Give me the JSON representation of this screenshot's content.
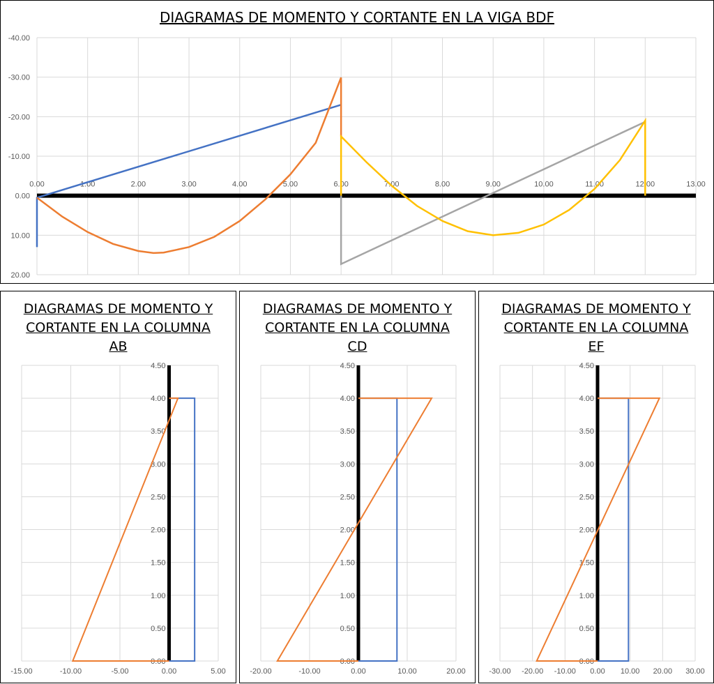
{
  "chart_data": [
    {
      "type": "line",
      "id": "beam",
      "title": "DIAGRAMAS DE MOMENTO Y CORTANTE EN LA VIGA BDF",
      "x": {
        "min": 0,
        "max": 13,
        "step": 1,
        "ticks": [
          "0.00",
          "1.00",
          "2.00",
          "3.00",
          "4.00",
          "5.00",
          "6.00",
          "7.00",
          "8.00",
          "9.00",
          "10.00",
          "11.00",
          "12.00",
          "13.00"
        ]
      },
      "y": {
        "min": -40,
        "max": 20,
        "step": 10,
        "reversed": true,
        "ticks": [
          "-40.00",
          "-30.00",
          "-20.00",
          "-10.00",
          "0.00",
          "10.00",
          "20.00"
        ]
      },
      "grid": true,
      "series": [
        {
          "color": "#000000",
          "width": 6,
          "points": [
            [
              0,
              0
            ],
            [
              13,
              0
            ]
          ]
        },
        {
          "color": "#4472C4",
          "width": 2.5,
          "points": [
            [
              0,
              13
            ],
            [
              0,
              0.5
            ],
            [
              6,
              -23
            ]
          ]
        },
        {
          "color": "#A5A5A5",
          "width": 2.5,
          "points": [
            [
              6,
              0
            ],
            [
              6,
              17.3
            ],
            [
              12,
              -18.7
            ],
            [
              12,
              -19
            ]
          ]
        },
        {
          "color": "#ED7D31",
          "width": 2.5,
          "points": [
            [
              0,
              0.5
            ],
            [
              0.5,
              5.3
            ],
            [
              1,
              9.2
            ],
            [
              1.5,
              12.2
            ],
            [
              2,
              14.0
            ],
            [
              2.3,
              14.5
            ],
            [
              2.5,
              14.4
            ],
            [
              3,
              13.0
            ],
            [
              3.5,
              10.4
            ],
            [
              4,
              6.4
            ],
            [
              4.5,
              1.0
            ],
            [
              5,
              -5.4
            ],
            [
              5.5,
              -13.4
            ],
            [
              6,
              -29.9
            ],
            [
              6,
              -15
            ]
          ]
        },
        {
          "color": "#FFC000",
          "width": 2.5,
          "points": [
            [
              6,
              0
            ],
            [
              6,
              -15
            ],
            [
              6.5,
              -8.5
            ],
            [
              7,
              -2.5
            ],
            [
              7.5,
              2.6
            ],
            [
              8,
              6.4
            ],
            [
              8.5,
              9.0
            ],
            [
              9,
              10.0
            ],
            [
              9.5,
              9.4
            ],
            [
              10,
              7.3
            ],
            [
              10.5,
              3.6
            ],
            [
              11,
              -1.7
            ],
            [
              11.5,
              -9.0
            ],
            [
              12,
              -19
            ],
            [
              12,
              0
            ]
          ]
        }
      ]
    },
    {
      "type": "line",
      "id": "col-ab",
      "title_lines": [
        "DIAGRAMAS DE MOMENTO Y",
        "CORTANTE EN LA COLUMNA",
        "AB"
      ],
      "x": {
        "min": -15,
        "max": 5,
        "step": 5,
        "ticks": [
          "-15.00",
          "-10.00",
          "-5.00",
          "0.00",
          "5.00"
        ]
      },
      "y": {
        "min": 0,
        "max": 4.5,
        "step": 0.5,
        "ticks": [
          "0.00",
          "0.50",
          "1.00",
          "1.50",
          "2.00",
          "2.50",
          "3.00",
          "3.50",
          "4.00",
          "4.50"
        ]
      },
      "grid": true,
      "series": [
        {
          "color": "#000000",
          "width": 5,
          "points": [
            [
              0,
              0
            ],
            [
              0,
              4.5
            ]
          ]
        },
        {
          "color": "#4472C4",
          "width": 2,
          "points": [
            [
              0,
              0
            ],
            [
              2.6,
              0
            ],
            [
              2.6,
              4
            ],
            [
              0,
              4
            ]
          ]
        },
        {
          "color": "#ED7D31",
          "width": 2,
          "points": [
            [
              0,
              0
            ],
            [
              -9.8,
              0
            ],
            [
              0.9,
              4
            ],
            [
              0,
              4
            ]
          ]
        }
      ]
    },
    {
      "type": "line",
      "id": "col-cd",
      "title_lines": [
        "DIAGRAMAS DE MOMENTO Y",
        "CORTANTE EN LA COLUMNA",
        "CD"
      ],
      "x": {
        "min": -20,
        "max": 20,
        "step": 10,
        "ticks": [
          "-20.00",
          "-10.00",
          "0.00",
          "10.00",
          "20.00"
        ]
      },
      "y": {
        "min": 0,
        "max": 4.5,
        "step": 0.5,
        "ticks": [
          "0.00",
          "0.50",
          "1.00",
          "1.50",
          "2.00",
          "2.50",
          "3.00",
          "3.50",
          "4.00",
          "4.50"
        ]
      },
      "grid": true,
      "series": [
        {
          "color": "#000000",
          "width": 5,
          "points": [
            [
              0,
              0
            ],
            [
              0,
              4.5
            ]
          ]
        },
        {
          "color": "#4472C4",
          "width": 2,
          "points": [
            [
              0,
              0
            ],
            [
              7.9,
              0
            ],
            [
              7.9,
              4
            ],
            [
              0,
              4
            ]
          ]
        },
        {
          "color": "#ED7D31",
          "width": 2,
          "points": [
            [
              0,
              0
            ],
            [
              -16.6,
              0
            ],
            [
              15,
              4
            ],
            [
              0,
              4
            ]
          ]
        }
      ]
    },
    {
      "type": "line",
      "id": "col-ef",
      "title_lines": [
        "DIAGRAMAS DE MOMENTO Y",
        "CORTANTE EN LA COLUMNA",
        "EF"
      ],
      "x": {
        "min": -30,
        "max": 30,
        "step": 10,
        "ticks": [
          "-30.00",
          "-20.00",
          "-10.00",
          "0.00",
          "10.00",
          "20.00",
          "30.00"
        ]
      },
      "y": {
        "min": 0,
        "max": 4.5,
        "step": 0.5,
        "ticks": [
          "0.00",
          "0.50",
          "1.00",
          "1.50",
          "2.00",
          "2.50",
          "3.00",
          "3.50",
          "4.00",
          "4.50"
        ]
      },
      "grid": true,
      "series": [
        {
          "color": "#000000",
          "width": 5,
          "points": [
            [
              0,
              0
            ],
            [
              0,
              4.5
            ]
          ]
        },
        {
          "color": "#4472C4",
          "width": 2,
          "points": [
            [
              0,
              0
            ],
            [
              9.5,
              0
            ],
            [
              9.5,
              4
            ],
            [
              0,
              4
            ]
          ]
        },
        {
          "color": "#ED7D31",
          "width": 2,
          "points": [
            [
              0,
              0
            ],
            [
              -18.7,
              0
            ],
            [
              19,
              4
            ],
            [
              0,
              4
            ]
          ]
        }
      ]
    }
  ]
}
